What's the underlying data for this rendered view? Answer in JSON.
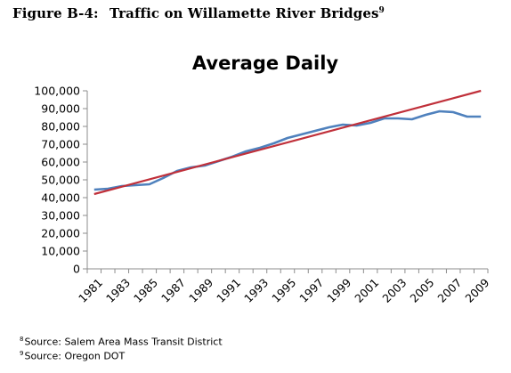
{
  "heading": {
    "label": "Figure B-4:",
    "title": "Traffic on Willamette River Bridges",
    "superscript": "9"
  },
  "footnotes": [
    {
      "mark": "8",
      "text": "Source: Salem Area Mass Transit District"
    },
    {
      "mark": "9",
      "text": "Source:  Oregon DOT"
    }
  ],
  "chart_data": {
    "type": "line",
    "title": "Average Daily",
    "xlabel": "",
    "ylabel": "",
    "ylim": [
      0,
      100000
    ],
    "y_ticks": [
      0,
      10000,
      20000,
      30000,
      40000,
      50000,
      60000,
      70000,
      80000,
      90000,
      100000
    ],
    "y_tick_labels": [
      "0",
      "10,000",
      "20,000",
      "30,000",
      "40,000",
      "50,000",
      "60,000",
      "70,000",
      "80,000",
      "90,000",
      "100,000"
    ],
    "x_tick_labels": [
      "1981",
      "1983",
      "1985",
      "1987",
      "1989",
      "1991",
      "1993",
      "1995",
      "1997",
      "1999",
      "2001",
      "2003",
      "2005",
      "2007",
      "2009"
    ],
    "categories": [
      1981,
      1982,
      1983,
      1984,
      1985,
      1986,
      1987,
      1988,
      1989,
      1990,
      1991,
      1992,
      1993,
      1994,
      1995,
      1996,
      1997,
      1998,
      1999,
      2000,
      2001,
      2002,
      2003,
      2004,
      2005,
      2006,
      2007,
      2008,
      2009
    ],
    "grid": false,
    "legend": "none",
    "series": [
      {
        "color": "#4f81bd",
        "values": [
          44500,
          45000,
          46500,
          47000,
          47500,
          51000,
          55000,
          57000,
          58000,
          60500,
          63000,
          66000,
          68000,
          70500,
          73500,
          75500,
          77500,
          79500,
          81000,
          80500,
          82000,
          84500,
          84500,
          84000,
          86500,
          88500,
          88000,
          85500,
          85500
        ]
      },
      {
        "color": "#c0303a",
        "trend": true,
        "values_linear_endpoints": [
          [
            1981,
            42000
          ],
          [
            2009,
            100000
          ]
        ]
      }
    ]
  }
}
